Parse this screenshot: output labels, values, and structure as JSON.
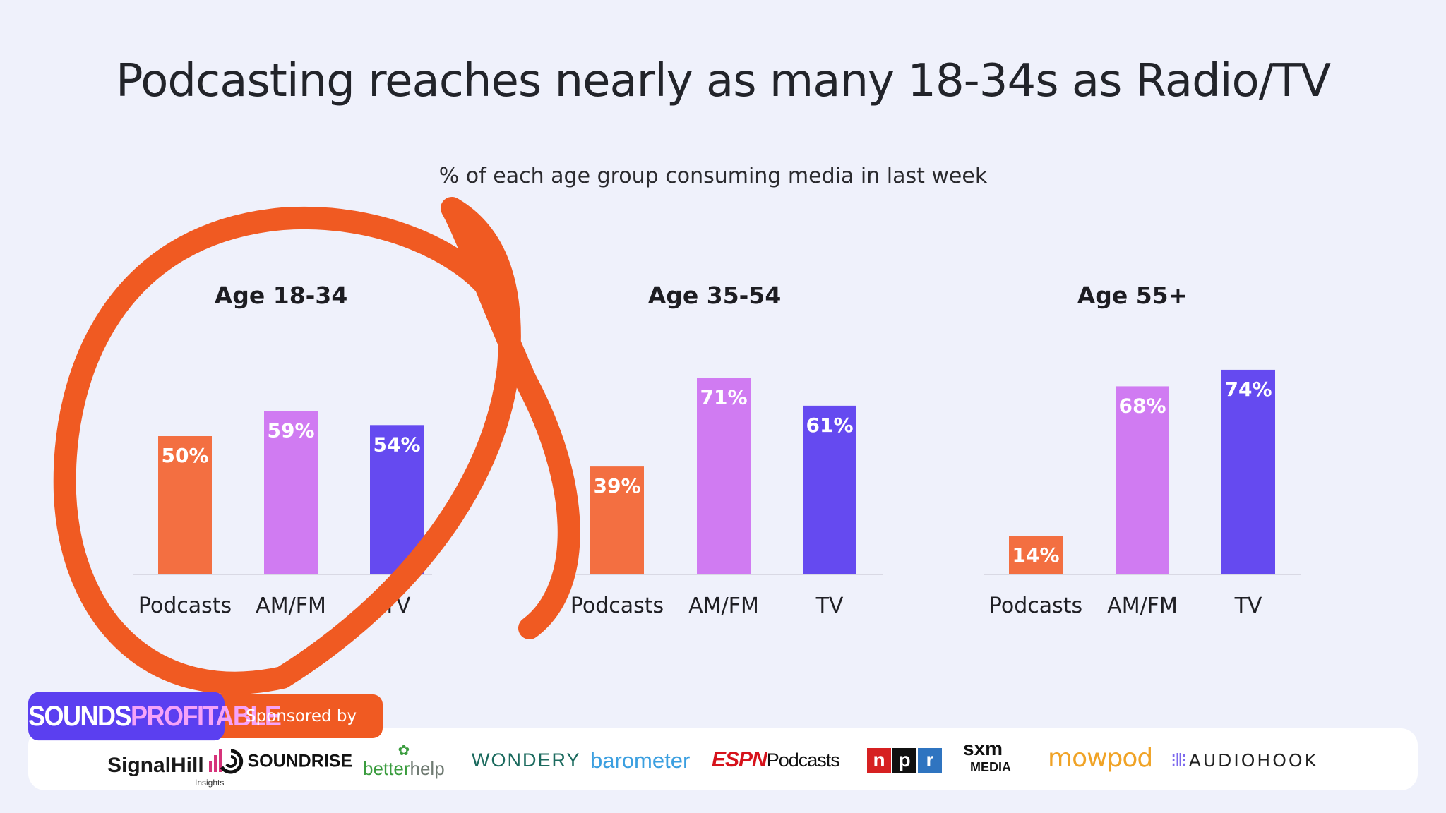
{
  "title": "Podcasting reaches nearly as many 18-34s as Radio/TV",
  "subtitle": "% of each age group consuming media in last week",
  "colors": {
    "podcasts": "#f36f41",
    "amfm": "#d07bf2",
    "tv": "#654af0",
    "highlight": "#f05a22"
  },
  "chart_data": [
    {
      "type": "bar",
      "title": "Age 18-34",
      "categories": [
        "Podcasts",
        "AM/FM",
        "TV"
      ],
      "values": [
        50,
        59,
        54
      ],
      "labels": [
        "50%",
        "59%",
        "54%"
      ],
      "unit": "%",
      "ylim": [
        0,
        100
      ],
      "grid": false,
      "highlighted": true
    },
    {
      "type": "bar",
      "title": "Age 35-54",
      "categories": [
        "Podcasts",
        "AM/FM",
        "TV"
      ],
      "values": [
        39,
        71,
        61
      ],
      "labels": [
        "39%",
        "71%",
        "61%"
      ],
      "unit": "%",
      "ylim": [
        0,
        100
      ],
      "grid": false
    },
    {
      "type": "bar",
      "title": "Age 55+",
      "categories": [
        "Podcasts",
        "AM/FM",
        "TV"
      ],
      "values": [
        14,
        68,
        74
      ],
      "labels": [
        "14%",
        "68%",
        "74%"
      ],
      "unit": "%",
      "ylim": [
        0,
        100
      ],
      "grid": false
    }
  ],
  "footer": {
    "brand_part1": "SOUNDS",
    "brand_part2": "PROFITABLE",
    "sponsored_by": "Sponsored by",
    "sponsors": {
      "signalhill": "SignalHill",
      "signalhill_sub": "Insights",
      "soundrise": "SOUNDRISE",
      "betterhelp_1": "better",
      "betterhelp_2": "help",
      "wondery": "WONDERY",
      "barometer": "barometer",
      "espn_1": "ESPN",
      "espn_2": "Podcasts",
      "npr_n": "n",
      "npr_p": "p",
      "npr_r": "r",
      "sxm": "sxm",
      "sxm_sub": "MEDIA",
      "mowpod": "mowpod",
      "audiohook": "AUDIOHOOK"
    }
  }
}
